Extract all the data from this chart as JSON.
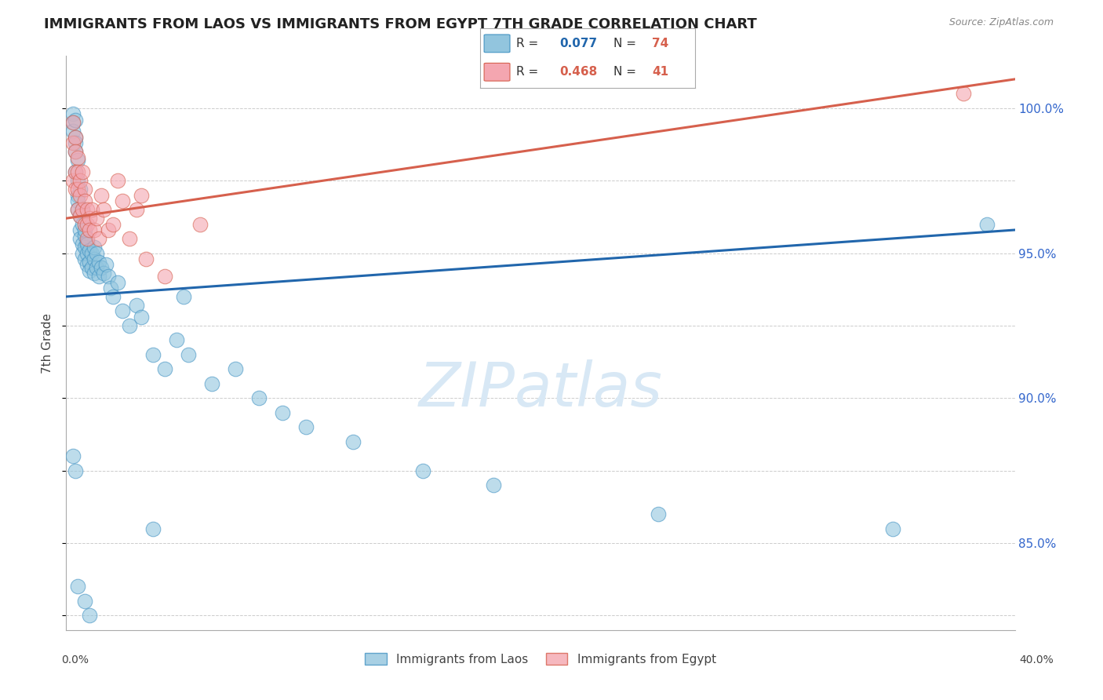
{
  "title": "IMMIGRANTS FROM LAOS VS IMMIGRANTS FROM EGYPT 7TH GRADE CORRELATION CHART",
  "source": "Source: ZipAtlas.com",
  "ylabel": "7th Grade",
  "ymin": 82.0,
  "ymax": 101.8,
  "xmin": -0.002,
  "xmax": 0.402,
  "legend_blue_label": "Immigrants from Laos",
  "legend_pink_label": "Immigrants from Egypt",
  "r_blue_val": "0.077",
  "n_blue_val": "74",
  "r_pink_val": "0.468",
  "n_pink_val": "41",
  "blue_color": "#92C5DE",
  "pink_color": "#F4A6B0",
  "blue_edge_color": "#4393C3",
  "pink_edge_color": "#D6604D",
  "blue_line_color": "#2166AC",
  "pink_line_color": "#D6604D",
  "watermark": "ZIPatlas",
  "blue_x": [
    0.001,
    0.001,
    0.001,
    0.002,
    0.002,
    0.002,
    0.002,
    0.002,
    0.003,
    0.003,
    0.003,
    0.003,
    0.003,
    0.004,
    0.004,
    0.004,
    0.004,
    0.005,
    0.005,
    0.005,
    0.005,
    0.006,
    0.006,
    0.006,
    0.006,
    0.007,
    0.007,
    0.007,
    0.007,
    0.008,
    0.008,
    0.008,
    0.009,
    0.009,
    0.01,
    0.01,
    0.01,
    0.011,
    0.011,
    0.012,
    0.012,
    0.013,
    0.014,
    0.015,
    0.016,
    0.017,
    0.018,
    0.02,
    0.022,
    0.025,
    0.028,
    0.03,
    0.035,
    0.04,
    0.045,
    0.05,
    0.06,
    0.07,
    0.08,
    0.09,
    0.1,
    0.12,
    0.15,
    0.18,
    0.25,
    0.35,
    0.001,
    0.002,
    0.003,
    0.006,
    0.008,
    0.035,
    0.048,
    0.39
  ],
  "blue_y": [
    99.8,
    99.5,
    99.2,
    99.6,
    99.0,
    98.8,
    98.5,
    97.8,
    98.2,
    97.5,
    97.0,
    96.8,
    96.5,
    97.2,
    96.3,
    95.8,
    95.5,
    96.0,
    95.3,
    95.0,
    96.5,
    95.6,
    95.2,
    94.8,
    95.8,
    95.4,
    95.0,
    94.6,
    95.3,
    95.1,
    94.7,
    94.4,
    94.5,
    95.0,
    94.8,
    94.3,
    95.2,
    94.5,
    95.0,
    94.2,
    94.7,
    94.5,
    94.3,
    94.6,
    94.2,
    93.8,
    93.5,
    94.0,
    93.0,
    92.5,
    93.2,
    92.8,
    91.5,
    91.0,
    92.0,
    91.5,
    90.5,
    91.0,
    90.0,
    89.5,
    89.0,
    88.5,
    87.5,
    87.0,
    86.0,
    85.5,
    88.0,
    87.5,
    83.5,
    83.0,
    82.5,
    85.5,
    93.5,
    96.0
  ],
  "pink_x": [
    0.001,
    0.001,
    0.001,
    0.002,
    0.002,
    0.002,
    0.002,
    0.003,
    0.003,
    0.003,
    0.003,
    0.004,
    0.004,
    0.004,
    0.005,
    0.005,
    0.006,
    0.006,
    0.006,
    0.007,
    0.007,
    0.007,
    0.008,
    0.008,
    0.009,
    0.01,
    0.011,
    0.012,
    0.013,
    0.014,
    0.016,
    0.018,
    0.02,
    0.022,
    0.025,
    0.028,
    0.03,
    0.032,
    0.04,
    0.055,
    0.38
  ],
  "pink_y": [
    99.5,
    98.8,
    97.5,
    99.0,
    98.5,
    97.8,
    97.2,
    98.3,
    97.8,
    97.2,
    96.5,
    97.5,
    97.0,
    96.3,
    97.8,
    96.5,
    97.2,
    96.8,
    96.0,
    96.5,
    96.0,
    95.5,
    96.2,
    95.8,
    96.5,
    95.8,
    96.2,
    95.5,
    97.0,
    96.5,
    95.8,
    96.0,
    97.5,
    96.8,
    95.5,
    96.5,
    97.0,
    94.8,
    94.2,
    96.0,
    100.5
  ],
  "blue_trend_x": [
    -0.002,
    0.402
  ],
  "blue_trend_y": [
    93.5,
    95.8
  ],
  "pink_trend_x": [
    -0.002,
    0.402
  ],
  "pink_trend_y": [
    96.2,
    101.0
  ],
  "ytick_positions": [
    85.0,
    90.0,
    95.0,
    100.0
  ],
  "ytick_labels": [
    "85.0%",
    "90.0%",
    "95.0%",
    "100.0%"
  ]
}
